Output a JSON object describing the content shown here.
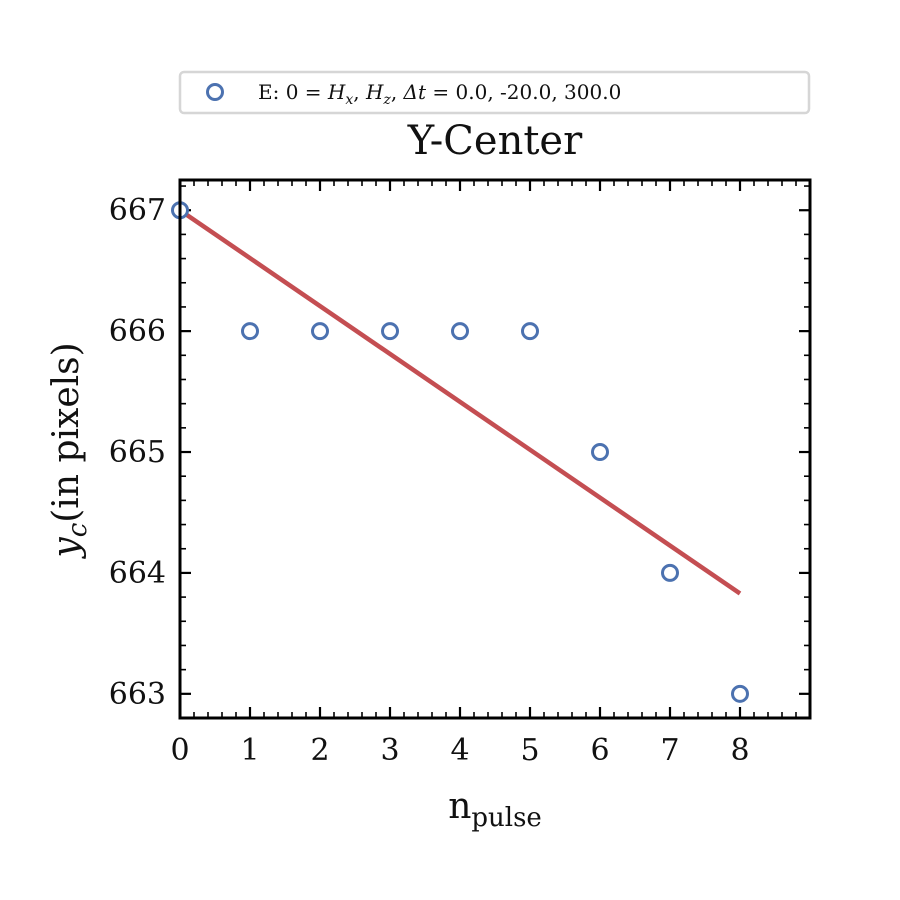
{
  "chart_data": {
    "type": "scatter",
    "title": "Y-Center",
    "xlabel": {
      "main": "n",
      "sub": "pulse"
    },
    "ylabel": {
      "main": "y",
      "sub": "c",
      "rest": "(in pixels)"
    },
    "xlim": [
      0,
      9
    ],
    "ylim": [
      662.8,
      667.25
    ],
    "xticks": [
      0,
      1,
      2,
      3,
      4,
      5,
      6,
      7,
      8
    ],
    "yticks": [
      663,
      664,
      665,
      666,
      667
    ],
    "grid": false,
    "legend_position": "top-center, above title",
    "series": [
      {
        "name": "E: 0 = H_x, H_z, Δt =  0.0, -20.0, 300.0",
        "legend": {
          "prefix": "E: 0 = ",
          "v1": "H",
          "v1_sub": "x",
          "v2": "H",
          "v2_sub": "z",
          "v3": "Δt",
          "eq": " = ",
          "values": "0.0, -20.0, 300.0"
        },
        "kind": "scatter",
        "marker": "open-circle",
        "color": "#4c72b0",
        "x": [
          0,
          1,
          2,
          3,
          4,
          5,
          6,
          7,
          8
        ],
        "y": [
          667,
          666,
          666,
          666,
          666,
          666,
          665,
          664,
          663
        ]
      },
      {
        "kind": "line",
        "role": "linear-fit",
        "color": "#c44e52",
        "x": [
          0,
          8
        ],
        "y": [
          667.0,
          663.83
        ]
      }
    ]
  }
}
